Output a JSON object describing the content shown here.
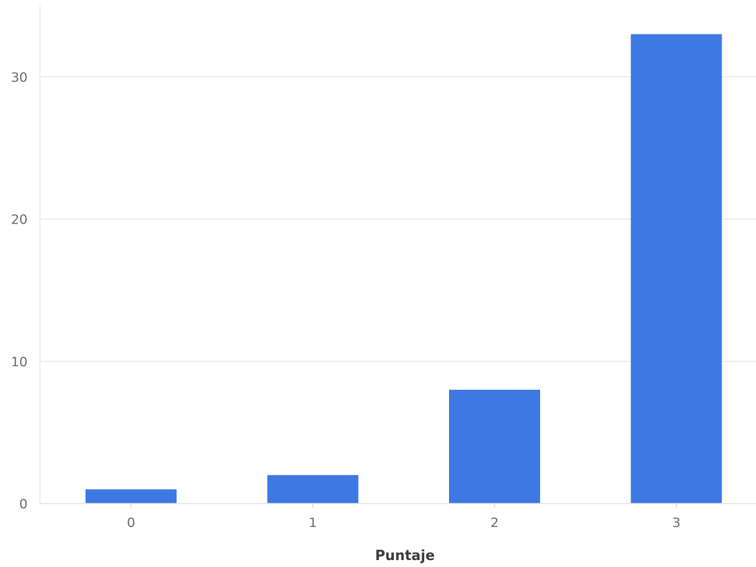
{
  "chart_data": {
    "type": "bar",
    "categories": [
      "0",
      "1",
      "2",
      "3"
    ],
    "values": [
      1,
      2,
      8,
      33
    ],
    "title": "",
    "xlabel": "Puntaje",
    "ylabel": "",
    "ylim": [
      0,
      35
    ],
    "y_ticks": [
      0,
      10,
      20,
      30
    ],
    "grid": "horizontal",
    "bar_color": "#3d78e3"
  }
}
